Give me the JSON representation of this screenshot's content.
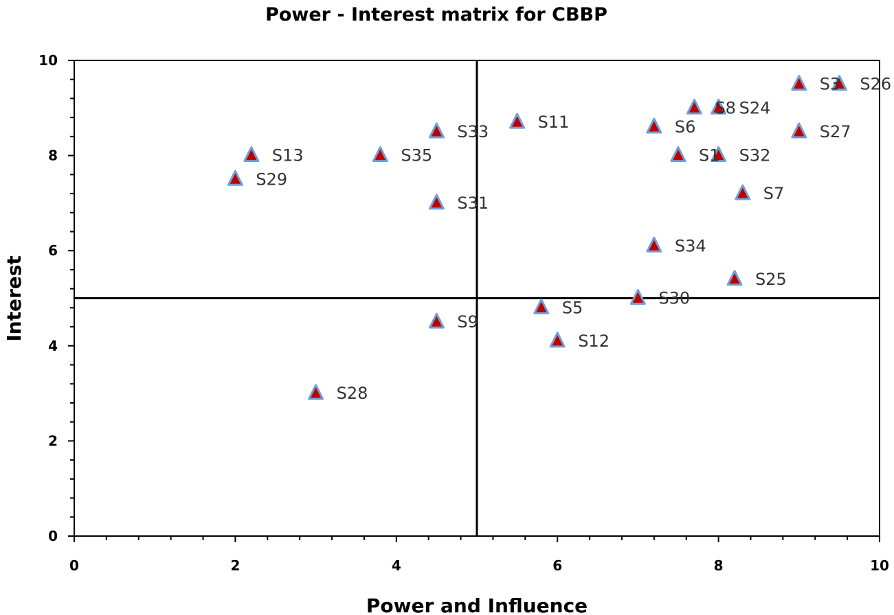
{
  "chart_data": {
    "type": "scatter",
    "title": "Power - Interest matrix for CBBP",
    "xlabel": "Power and Influence",
    "ylabel": "Interest",
    "xlim": [
      0,
      10
    ],
    "ylim": [
      0,
      10
    ],
    "x_ticks": [
      "0",
      "2",
      "4",
      "6",
      "8",
      "10"
    ],
    "y_ticks": [
      "0",
      "2",
      "4",
      "6",
      "8",
      "10"
    ],
    "quadrant_dividers": {
      "x": 5,
      "y": 5
    },
    "grid": false,
    "legend": "none",
    "marker": "triangle",
    "colors": {
      "marker_fill": "#c00000",
      "marker_stroke": "#6fa0d8",
      "axis": "#000000",
      "label": "#333333"
    },
    "points": [
      {
        "label": "S3",
        "x": 9.0,
        "y": 9.5
      },
      {
        "label": "S26",
        "x": 9.5,
        "y": 9.5
      },
      {
        "label": "S8",
        "x": 7.7,
        "y": 9.0
      },
      {
        "label": "S24",
        "x": 8.0,
        "y": 9.0
      },
      {
        "label": "S11",
        "x": 5.5,
        "y": 8.7
      },
      {
        "label": "S6",
        "x": 7.2,
        "y": 8.6
      },
      {
        "label": "S33",
        "x": 4.5,
        "y": 8.5
      },
      {
        "label": "S27",
        "x": 9.0,
        "y": 8.5
      },
      {
        "label": "S13",
        "x": 2.2,
        "y": 8.0
      },
      {
        "label": "S35",
        "x": 3.8,
        "y": 8.0
      },
      {
        "label": "S1",
        "x": 7.5,
        "y": 8.0
      },
      {
        "label": "S32",
        "x": 8.0,
        "y": 8.0
      },
      {
        "label": "S29",
        "x": 2.0,
        "y": 7.5
      },
      {
        "label": "S7",
        "x": 8.3,
        "y": 7.2
      },
      {
        "label": "S31",
        "x": 4.5,
        "y": 7.0
      },
      {
        "label": "S34",
        "x": 7.2,
        "y": 6.1
      },
      {
        "label": "S25",
        "x": 8.2,
        "y": 5.4
      },
      {
        "label": "S30",
        "x": 7.0,
        "y": 5.0
      },
      {
        "label": "S5",
        "x": 5.8,
        "y": 4.8
      },
      {
        "label": "S9",
        "x": 4.5,
        "y": 4.5
      },
      {
        "label": "S12",
        "x": 6.0,
        "y": 4.1
      },
      {
        "label": "S28",
        "x": 3.0,
        "y": 3.0
      }
    ]
  }
}
